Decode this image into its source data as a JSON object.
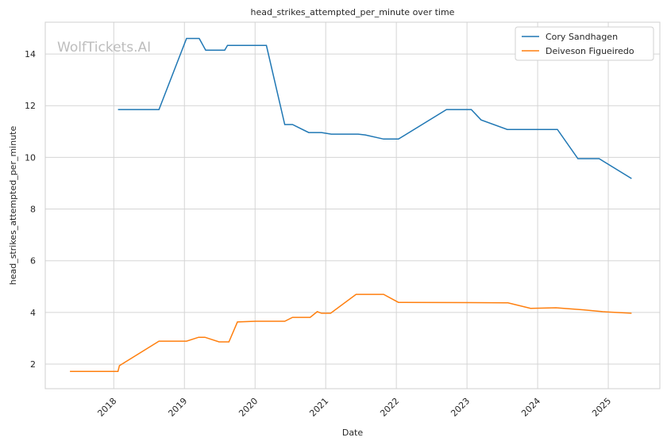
{
  "chart_data": {
    "type": "line",
    "title": "head_strikes_attempted_per_minute over time",
    "xlabel": "Date",
    "ylabel": "head_strikes_attempted_per_minute",
    "watermark": "WolfTickets.AI",
    "xlim": [
      2017.03,
      2025.73
    ],
    "xticks": [
      2018,
      2019,
      2020,
      2021,
      2022,
      2023,
      2024,
      2025
    ],
    "ylim": [
      1.05,
      15.23
    ],
    "yticks": [
      2,
      4,
      6,
      8,
      10,
      12,
      14
    ],
    "grid": true,
    "legend": "upper right",
    "series": [
      {
        "name": "Cory Sandhagen",
        "color": "#1f77b4",
        "x": [
          2018.06,
          2018.64,
          2019.03,
          2019.21,
          2019.3,
          2019.57,
          2019.61,
          2020.16,
          2020.42,
          2020.53,
          2020.76,
          2020.94,
          2021.08,
          2021.46,
          2021.56,
          2021.82,
          2022.03,
          2022.71,
          2023.06,
          2023.2,
          2023.57,
          2024.28,
          2024.57,
          2024.87,
          2025.33
        ],
        "values": [
          11.85,
          11.85,
          14.6,
          14.6,
          14.15,
          14.15,
          14.33,
          14.33,
          11.27,
          11.27,
          10.96,
          10.96,
          10.9,
          10.9,
          10.87,
          10.71,
          10.71,
          11.85,
          11.85,
          11.45,
          11.08,
          11.08,
          9.95,
          9.95,
          9.18
        ]
      },
      {
        "name": "Deiveson Figueiredo",
        "color": "#ff7f0e",
        "x": [
          2017.38,
          2018.06,
          2018.08,
          2018.64,
          2019.03,
          2019.2,
          2019.29,
          2019.49,
          2019.63,
          2019.75,
          2020.01,
          2020.42,
          2020.53,
          2020.78,
          2020.88,
          2020.94,
          2021.07,
          2021.43,
          2021.82,
          2022.03,
          2023.06,
          2023.58,
          2023.9,
          2024.26,
          2024.65,
          2024.92,
          2025.33
        ],
        "values": [
          1.72,
          1.72,
          1.94,
          2.89,
          2.89,
          3.04,
          3.04,
          2.86,
          2.86,
          3.63,
          3.66,
          3.66,
          3.81,
          3.81,
          4.03,
          3.97,
          3.97,
          4.7,
          4.7,
          4.39,
          4.38,
          4.37,
          4.16,
          4.18,
          4.1,
          4.03,
          3.97
        ]
      }
    ]
  }
}
